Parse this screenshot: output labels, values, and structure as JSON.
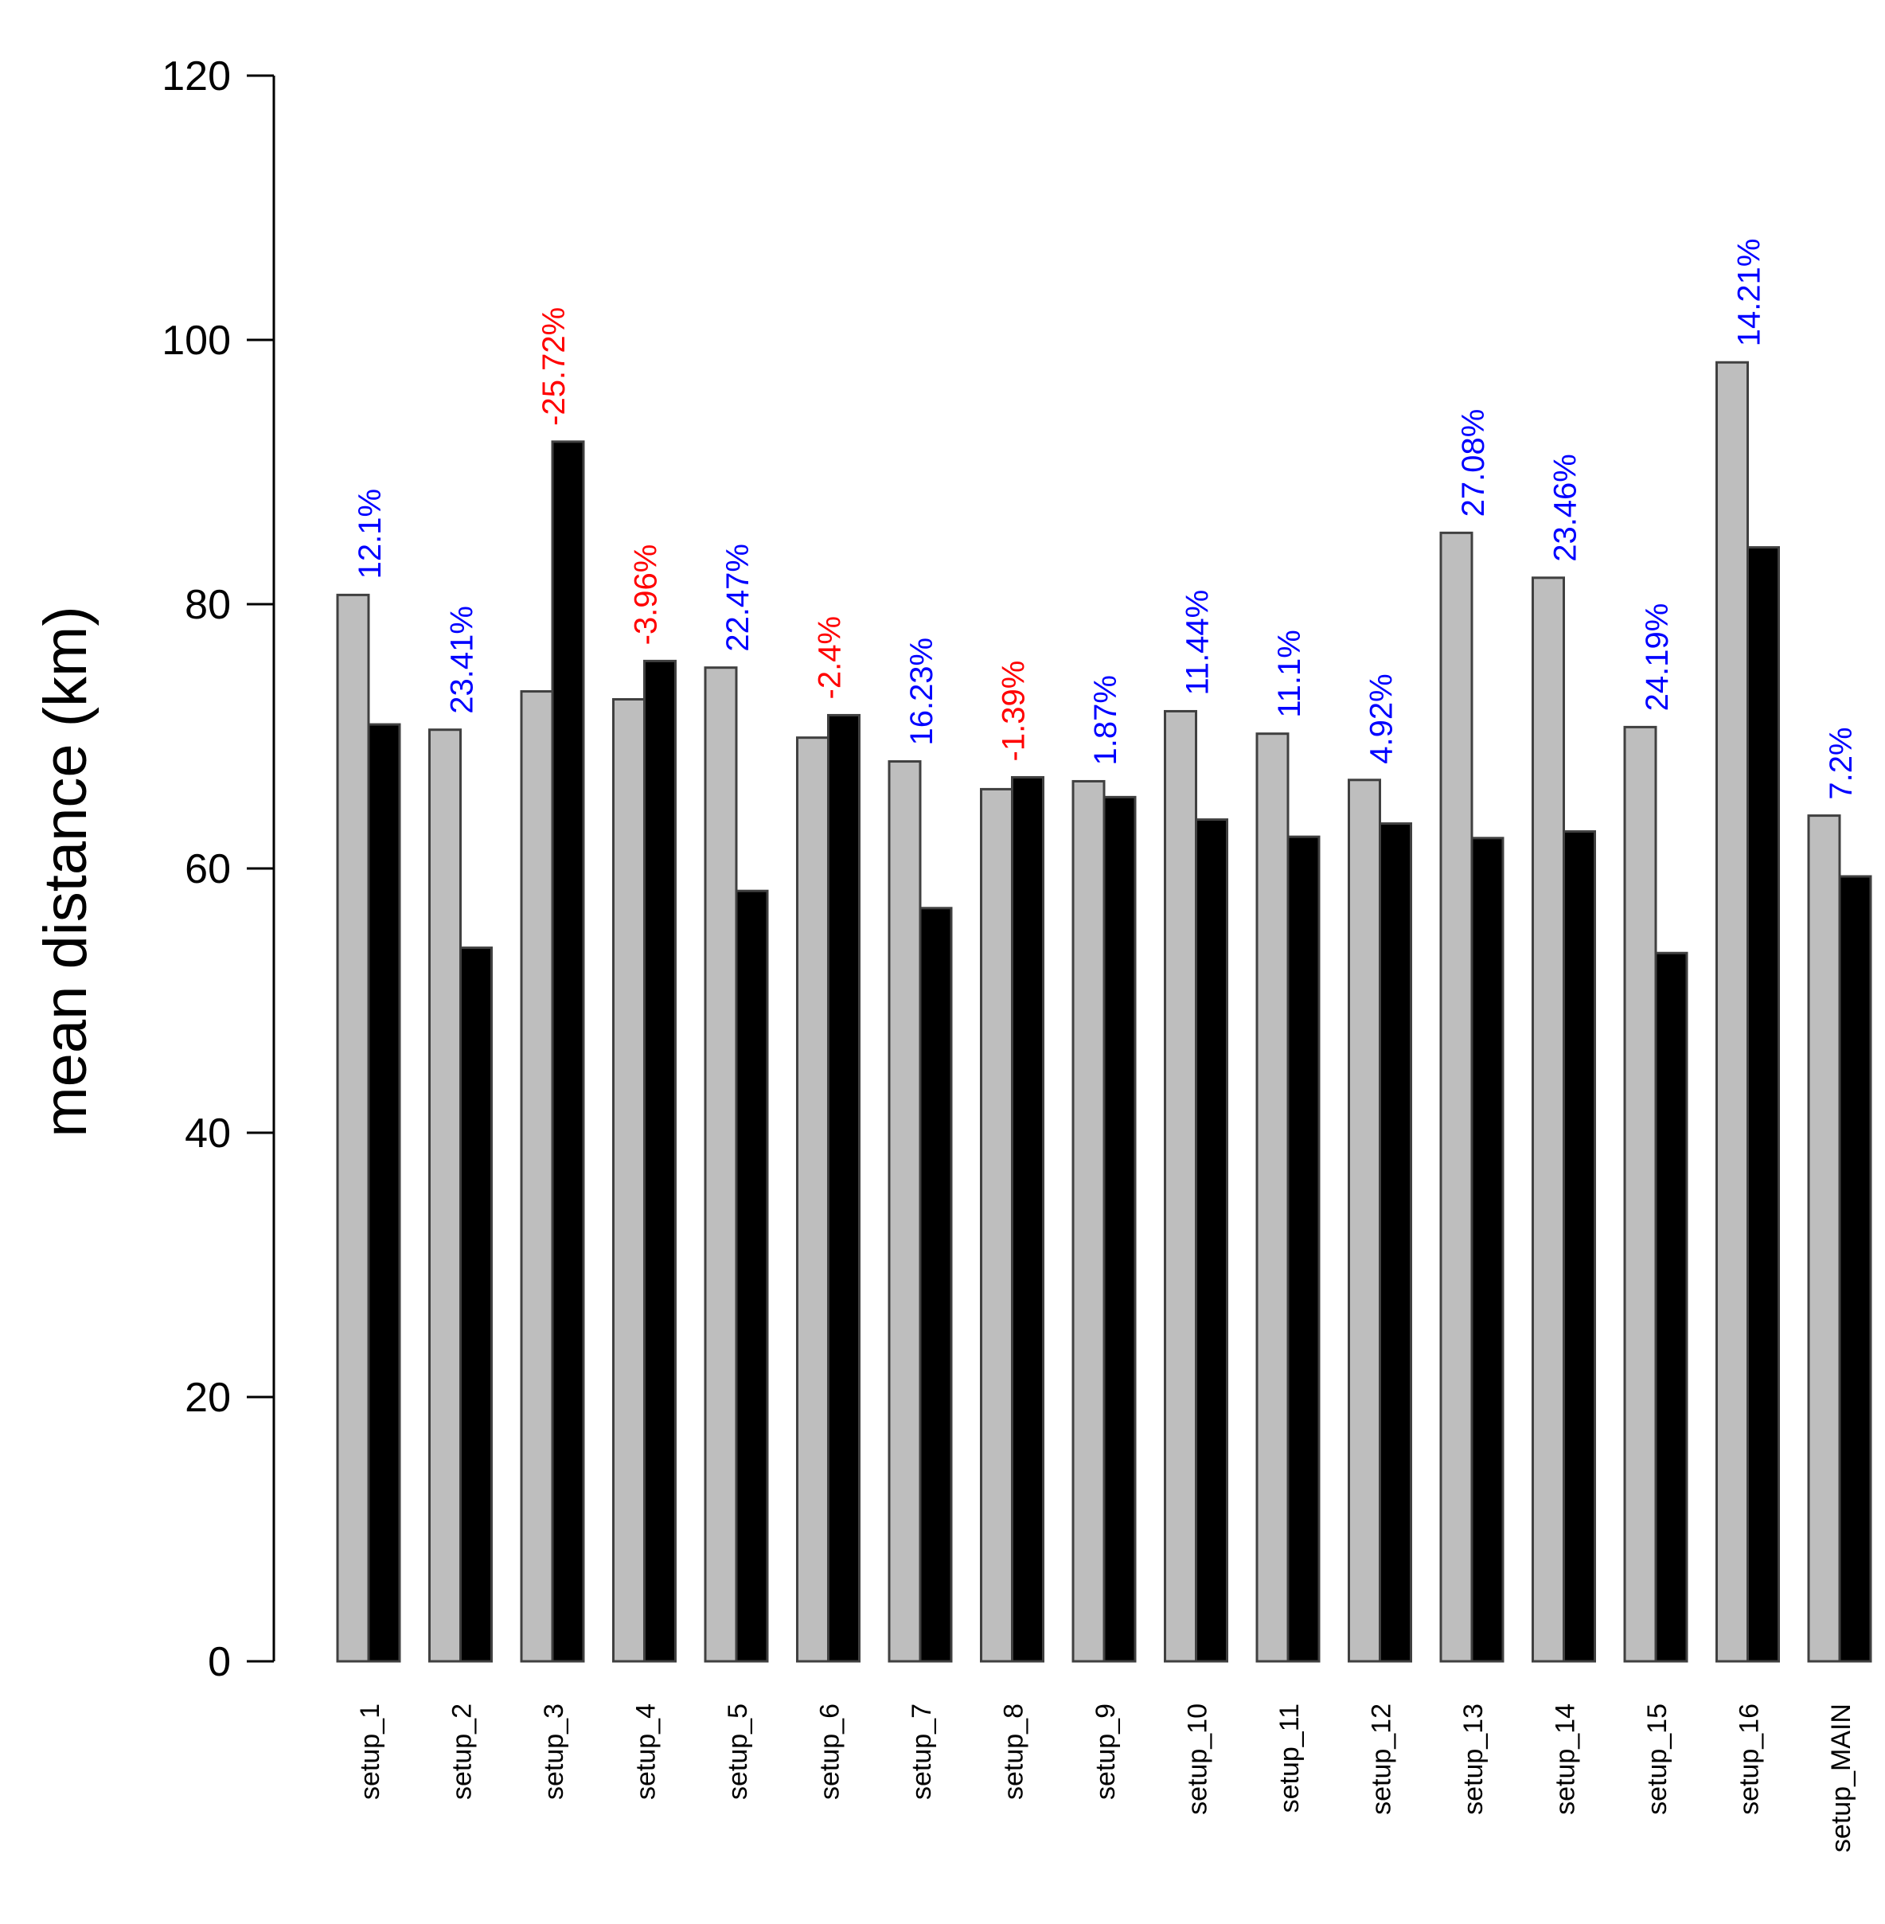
{
  "chart_data": {
    "type": "bar",
    "title": "",
    "xlabel": "",
    "ylabel": "mean distance (km)",
    "ylim": [
      0,
      120
    ],
    "yticks": [
      0,
      20,
      40,
      60,
      80,
      100,
      120
    ],
    "grid": false,
    "categories": [
      "setup_1",
      "setup_2",
      "setup_3",
      "setup_4",
      "setup_5",
      "setup_6",
      "setup_7",
      "setup_8",
      "setup_9",
      "setup_10",
      "setup_11",
      "setup_12",
      "setup_13",
      "setup_14",
      "setup_15",
      "setup_16",
      "setup_MAIN"
    ],
    "series": [
      {
        "name": "grey",
        "color": "#bebebe",
        "values": [
          80.7,
          70.5,
          73.4,
          72.8,
          75.2,
          69.9,
          68.1,
          66.0,
          66.6,
          71.9,
          70.2,
          66.7,
          85.4,
          82.0,
          70.7,
          98.3,
          64.0
        ]
      },
      {
        "name": "black",
        "color": "#000000",
        "values": [
          70.9,
          54.0,
          92.3,
          75.7,
          58.3,
          71.6,
          57.0,
          66.9,
          65.4,
          63.7,
          62.4,
          63.4,
          62.3,
          62.8,
          53.6,
          84.3,
          59.4
        ]
      }
    ],
    "annotations": [
      "12.1%",
      "23.41%",
      "-25.72%",
      "-3.96%",
      "22.47%",
      "-2.4%",
      "16.23%",
      "-1.39%",
      "1.87%",
      "11.44%",
      "11.1%",
      "4.92%",
      "27.08%",
      "23.46%",
      "24.19%",
      "14.21%",
      "7.2%"
    ],
    "annotation_colors": {
      "positive": "#0000ff",
      "negative": "#ff0000"
    },
    "bar_border_color": "#404040",
    "axis_color": "#000000"
  }
}
